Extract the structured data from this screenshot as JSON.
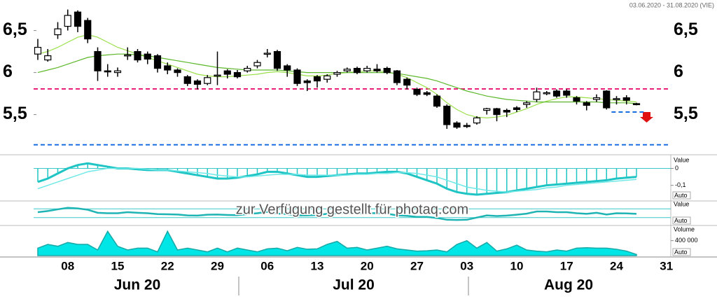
{
  "date_range": "03.06.2020 - 31.08.2020 (VIE)",
  "watermark": "zur Verfügung gestellt für photaq.com",
  "chart_data": [
    {
      "type": "candlestick",
      "categories": [
        null,
        null,
        null,
        "08",
        null,
        null,
        null,
        null,
        "15",
        null,
        null,
        null,
        null,
        "22",
        null,
        null,
        null,
        null,
        "29",
        null,
        null,
        null,
        null,
        "06",
        null,
        null,
        null,
        null,
        "13",
        null,
        null,
        null,
        null,
        "20",
        null,
        null,
        null,
        null,
        "27",
        null,
        null,
        null,
        null,
        "03",
        null,
        null,
        null,
        null,
        "10",
        null,
        null,
        null,
        null,
        "17",
        null,
        null,
        null,
        null,
        "24",
        null,
        null,
        null,
        null,
        "31"
      ],
      "months": [
        "Jun 20",
        "Jul 20",
        "Aug 20"
      ],
      "open": [
        6.22,
        6.15,
        6.45,
        6.55,
        6.72,
        6.62,
        6.25,
        6.02,
        6.0,
        6.2,
        6.25,
        6.22,
        6.2,
        6.08,
        6.03,
        5.95,
        5.9,
        5.87,
        5.96,
        6.02,
        6.0,
        6.02,
        6.08,
        6.22,
        6.25,
        6.08,
        6.03,
        5.9,
        5.95,
        5.92,
        5.98,
        6.02,
        6.05,
        6.02,
        6.04,
        6.05,
        6.02,
        5.92,
        5.8,
        5.76,
        5.72,
        5.6,
        5.4,
        5.37,
        5.4,
        5.55,
        5.57,
        5.55,
        5.58,
        5.62,
        5.68,
        5.75,
        5.78,
        5.78,
        5.7,
        5.64,
        5.68,
        5.78,
        5.68,
        5.7,
        5.63,
        null,
        null,
        null
      ],
      "high": [
        6.4,
        6.28,
        6.6,
        6.75,
        6.74,
        6.65,
        6.3,
        6.1,
        6.06,
        6.3,
        6.28,
        6.25,
        6.22,
        6.12,
        6.05,
        5.97,
        5.92,
        5.97,
        6.25,
        6.04,
        6.03,
        6.08,
        6.15,
        6.28,
        6.27,
        6.1,
        6.05,
        5.92,
        5.97,
        5.98,
        6.02,
        6.06,
        6.07,
        6.08,
        6.1,
        6.07,
        6.03,
        5.94,
        5.82,
        5.78,
        5.74,
        5.62,
        5.42,
        5.4,
        5.48,
        5.58,
        5.58,
        5.57,
        5.6,
        5.66,
        5.82,
        5.78,
        5.8,
        5.8,
        5.72,
        5.66,
        5.74,
        5.79,
        5.72,
        5.73,
        5.64,
        null,
        null,
        null
      ],
      "low": [
        6.15,
        6.13,
        6.4,
        6.5,
        6.48,
        6.35,
        5.9,
        5.95,
        5.95,
        6.15,
        6.12,
        6.1,
        6.0,
        5.98,
        5.95,
        5.84,
        5.8,
        5.85,
        5.85,
        5.93,
        5.93,
        6.0,
        6.05,
        6.18,
        6.02,
        5.95,
        5.84,
        5.78,
        5.82,
        5.88,
        5.95,
        6.0,
        5.98,
        6.0,
        6.0,
        5.98,
        5.85,
        5.8,
        5.72,
        5.72,
        5.58,
        5.33,
        5.33,
        5.34,
        5.38,
        5.5,
        5.42,
        5.47,
        5.53,
        5.58,
        5.65,
        5.73,
        5.7,
        5.7,
        5.62,
        5.55,
        5.65,
        5.56,
        5.62,
        5.62,
        5.61,
        null,
        null,
        null
      ],
      "close": [
        6.3,
        6.2,
        6.52,
        6.68,
        6.55,
        6.4,
        6.02,
        6.01,
        6.02,
        6.21,
        6.15,
        6.16,
        6.05,
        6.03,
        6.0,
        5.87,
        5.86,
        5.94,
        5.97,
        5.98,
        5.95,
        6.05,
        6.12,
        6.23,
        6.05,
        6.03,
        5.87,
        5.88,
        5.9,
        5.96,
        6.0,
        6.04,
        6.0,
        6.05,
        6.02,
        6.0,
        5.88,
        5.85,
        5.74,
        5.74,
        5.6,
        5.38,
        5.35,
        5.36,
        5.46,
        5.57,
        5.5,
        5.53,
        5.56,
        5.64,
        5.77,
        5.76,
        5.72,
        5.73,
        5.66,
        5.61,
        5.7,
        5.58,
        5.69,
        5.67,
        5.62,
        null,
        null,
        null
      ],
      "series": [
        {
          "color": "#9be04a",
          "values": [
            6.22,
            6.25,
            6.3,
            6.36,
            6.42,
            6.45,
            6.42,
            6.36,
            6.3,
            6.26,
            6.22,
            6.18,
            6.14,
            6.1,
            6.06,
            6.02,
            5.98,
            5.96,
            5.95,
            5.95,
            5.96,
            5.97,
            5.98,
            6.0,
            6.01,
            6.0,
            5.98,
            5.96,
            5.96,
            5.97,
            5.99,
            6.0,
            6.01,
            6.02,
            6.02,
            6.01,
            5.98,
            5.94,
            5.88,
            5.82,
            5.74,
            5.64,
            5.56,
            5.5,
            5.47,
            5.46,
            5.47,
            5.49,
            5.53,
            5.57,
            5.62,
            5.66,
            5.69,
            5.71,
            5.71,
            5.7,
            5.69,
            5.68,
            5.67,
            5.66,
            5.65,
            null,
            null,
            null
          ]
        },
        {
          "color": "#5cb82a",
          "values": [
            6.0,
            6.03,
            6.06,
            6.1,
            6.14,
            6.18,
            6.2,
            6.21,
            6.22,
            6.22,
            6.21,
            6.2,
            6.18,
            6.16,
            6.14,
            6.12,
            6.1,
            6.08,
            6.06,
            6.05,
            6.04,
            6.03,
            6.03,
            6.03,
            6.03,
            6.02,
            6.01,
            6.0,
            6.0,
            6.0,
            6.0,
            6.0,
            6.0,
            6.0,
            6.0,
            6.0,
            5.99,
            5.97,
            5.95,
            5.93,
            5.9,
            5.86,
            5.82,
            5.78,
            5.75,
            5.72,
            5.7,
            5.68,
            5.67,
            5.66,
            5.65,
            5.65,
            5.65,
            5.65,
            5.65,
            5.65,
            5.65,
            5.64,
            5.64,
            5.64,
            5.63,
            null,
            null,
            null
          ]
        }
      ],
      "hlines": [
        {
          "value": 5.805,
          "color": "#e8207a"
        },
        {
          "value": 5.14,
          "color": "#1a6fe0"
        },
        {
          "value": 5.53,
          "color": "#1a6fe0"
        }
      ],
      "ylim": [
        5.03,
        6.78
      ],
      "yticks": [
        {
          "value": 6.5,
          "label": "6,5"
        },
        6,
        {
          "value": 5.5,
          "label": "5,5"
        }
      ]
    },
    {
      "type": "oscillator",
      "axis_label": "Value",
      "button": "Auto",
      "series": [
        {
          "color": "#1fc4c4",
          "values": [
            -0.08,
            -0.06,
            -0.03,
            0.0,
            0.02,
            0.03,
            0.02,
            0.01,
            0.0,
            0.0,
            -0.005,
            -0.01,
            -0.01,
            -0.01,
            -0.02,
            -0.03,
            -0.04,
            -0.05,
            -0.06,
            -0.06,
            -0.055,
            -0.045,
            -0.035,
            -0.02,
            -0.02,
            -0.03,
            -0.04,
            -0.05,
            -0.05,
            -0.045,
            -0.04,
            -0.035,
            -0.03,
            -0.03,
            -0.025,
            -0.02,
            -0.02,
            -0.03,
            -0.05,
            -0.07,
            -0.09,
            -0.12,
            -0.14,
            -0.15,
            -0.155,
            -0.15,
            -0.145,
            -0.14,
            -0.13,
            -0.12,
            -0.11,
            -0.1,
            -0.095,
            -0.09,
            -0.085,
            -0.08,
            -0.075,
            -0.07,
            -0.06,
            -0.055,
            -0.05,
            null,
            null,
            null
          ]
        },
        {
          "color": "#6fe8e8",
          "values": [
            -0.12,
            -0.1,
            -0.08,
            -0.06,
            -0.04,
            -0.02,
            -0.01,
            0.0,
            0.0,
            0.0,
            0.0,
            -0.005,
            -0.01,
            -0.01,
            -0.015,
            -0.02,
            -0.025,
            -0.03,
            -0.04,
            -0.045,
            -0.05,
            -0.05,
            -0.045,
            -0.04,
            -0.035,
            -0.035,
            -0.035,
            -0.04,
            -0.04,
            -0.04,
            -0.04,
            -0.04,
            -0.035,
            -0.035,
            -0.03,
            -0.03,
            -0.025,
            -0.025,
            -0.03,
            -0.04,
            -0.05,
            -0.07,
            -0.09,
            -0.11,
            -0.12,
            -0.13,
            -0.135,
            -0.14,
            -0.135,
            -0.13,
            -0.125,
            -0.115,
            -0.11,
            -0.1,
            -0.095,
            -0.09,
            -0.085,
            -0.08,
            -0.075,
            -0.07,
            -0.065,
            null,
            null,
            null
          ]
        }
      ],
      "ylim": [
        -0.18,
        0.06
      ],
      "yticks": [
        0,
        {
          "value": -0.1,
          "label": "-0,1"
        }
      ]
    },
    {
      "type": "line",
      "axis_label": "Value",
      "button": "Auto",
      "series": [
        {
          "color": "#1fb4b4",
          "values": [
            55,
            60,
            68,
            75,
            72,
            66,
            52,
            50,
            50,
            55,
            52,
            50,
            46,
            45,
            44,
            40,
            39,
            43,
            44,
            42,
            41,
            46,
            50,
            56,
            48,
            46,
            40,
            40,
            42,
            47,
            50,
            52,
            49,
            51,
            50,
            48,
            40,
            38,
            33,
            33,
            28,
            20,
            19,
            20,
            30,
            40,
            37,
            39,
            43,
            48,
            58,
            58,
            55,
            55,
            50,
            47,
            52,
            44,
            50,
            49,
            47,
            null,
            null,
            null
          ]
        }
      ],
      "hlines": [
        {
          "value": 70,
          "color": "#3cc8c8"
        },
        {
          "value": 30,
          "color": "#3cc8c8"
        }
      ],
      "ylim": [
        0,
        100
      ]
    },
    {
      "type": "area",
      "axis_label": "Volume",
      "button": "Auto",
      "series": [
        {
          "color": "#00e5e5",
          "values": [
            200000,
            300000,
            250000,
            350000,
            300000,
            300000,
            150000,
            650000,
            250000,
            150000,
            200000,
            200000,
            100000,
            650000,
            150000,
            200000,
            150000,
            100000,
            200000,
            100000,
            200000,
            150000,
            100000,
            180000,
            200000,
            130000,
            220000,
            170000,
            180000,
            300000,
            380000,
            200000,
            220000,
            150000,
            200000,
            250000,
            180000,
            150000,
            120000,
            130000,
            150000,
            100000,
            300000,
            400000,
            200000,
            350000,
            120000,
            180000,
            280000,
            150000,
            120000,
            100000,
            150000,
            120000,
            200000,
            210000,
            200000,
            200000,
            170000,
            120000,
            30000,
            null,
            null,
            null
          ]
        }
      ],
      "ylim": [
        0,
        750000
      ],
      "yticks": [
        {
          "value": 400000,
          "label": "400 000"
        }
      ]
    }
  ]
}
